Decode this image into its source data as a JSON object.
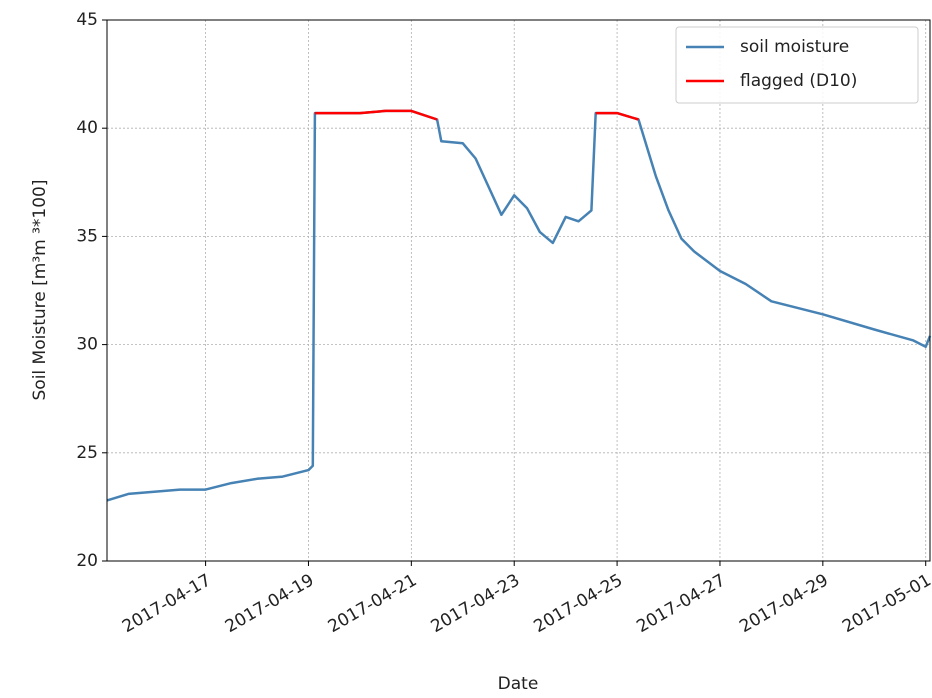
{
  "chart_data": {
    "type": "line",
    "x_label": "Date",
    "y_label": "Soil Moisture [m³m ³*100]",
    "x": [
      "2017-04-15T02:00",
      "2017-04-15T12:00",
      "2017-04-16T00:00",
      "2017-04-16T12:00",
      "2017-04-17T00:00",
      "2017-04-17T12:00",
      "2017-04-18T00:00",
      "2017-04-18T12:00",
      "2017-04-19T00:00",
      "2017-04-19T02:00",
      "2017-04-19T03:00",
      "2017-04-19T12:00",
      "2017-04-20T00:00",
      "2017-04-20T12:00",
      "2017-04-21T00:00",
      "2017-04-21T12:00",
      "2017-04-21T14:00",
      "2017-04-22T00:00",
      "2017-04-22T06:00",
      "2017-04-22T12:00",
      "2017-04-22T18:00",
      "2017-04-23T00:00",
      "2017-04-23T06:00",
      "2017-04-23T12:00",
      "2017-04-23T18:00",
      "2017-04-24T00:00",
      "2017-04-24T06:00",
      "2017-04-24T12:00",
      "2017-04-24T14:00",
      "2017-04-25T00:00",
      "2017-04-25T10:00",
      "2017-04-25T18:00",
      "2017-04-26T00:00",
      "2017-04-26T06:00",
      "2017-04-26T12:00",
      "2017-04-27T00:00",
      "2017-04-27T12:00",
      "2017-04-28T00:00",
      "2017-04-29T00:00",
      "2017-04-30T00:00",
      "2017-04-30T18:00",
      "2017-05-01T00:00",
      "2017-05-01T02:00"
    ],
    "series": [
      {
        "name": "soil moisture",
        "color": "#4682b4",
        "values": [
          22.8,
          23.1,
          23.2,
          23.3,
          23.3,
          23.6,
          23.8,
          23.9,
          24.2,
          24.4,
          40.7,
          40.7,
          40.7,
          40.8,
          40.8,
          40.4,
          39.4,
          39.3,
          38.6,
          37.3,
          36.0,
          36.9,
          36.3,
          35.2,
          34.7,
          35.9,
          35.7,
          36.2,
          40.7,
          40.7,
          40.4,
          37.8,
          36.2,
          34.9,
          34.3,
          33.4,
          32.8,
          32.0,
          31.4,
          30.7,
          30.2,
          29.9,
          30.4
        ]
      },
      {
        "name": "flagged (D10)",
        "color": "#ff0000",
        "values": [
          null,
          null,
          null,
          null,
          null,
          null,
          null,
          null,
          null,
          null,
          40.7,
          40.7,
          40.7,
          40.8,
          40.8,
          40.4,
          null,
          null,
          null,
          null,
          null,
          null,
          null,
          null,
          null,
          null,
          null,
          null,
          40.7,
          40.7,
          40.4,
          null,
          null,
          null,
          null,
          null,
          null,
          null,
          null,
          null,
          null,
          null,
          null
        ]
      }
    ],
    "xlim": [
      "2017-04-15T02:00",
      "2017-05-01T02:00"
    ],
    "xticks": [
      "2017-04-17",
      "2017-04-19",
      "2017-04-21",
      "2017-04-23",
      "2017-04-25",
      "2017-04-27",
      "2017-04-29",
      "2017-05-01"
    ],
    "ylim": [
      20,
      45
    ],
    "yticks": [
      20,
      25,
      30,
      35,
      40,
      45
    ],
    "grid": true,
    "legend": "upper right"
  }
}
